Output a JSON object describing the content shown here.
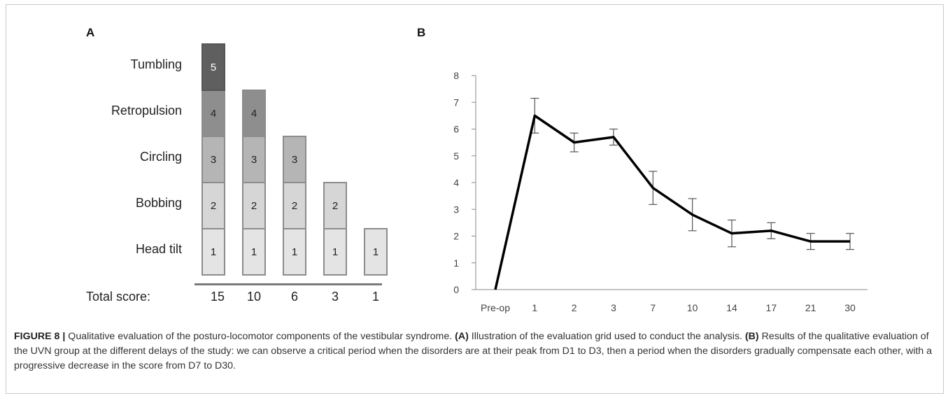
{
  "panel_a": {
    "letter": "A",
    "rows": [
      "Tumbling",
      "Retropulsion",
      "Circling",
      "Bobbing",
      "Head tilt"
    ],
    "total_label": "Total score:",
    "columns": [
      {
        "total": "15",
        "levels": [
          1,
          2,
          3,
          4,
          5
        ]
      },
      {
        "total": "10",
        "levels": [
          1,
          2,
          3,
          4
        ]
      },
      {
        "total": "6",
        "levels": [
          1,
          2,
          3
        ]
      },
      {
        "total": "3",
        "levels": [
          1,
          2
        ]
      },
      {
        "total": "1",
        "levels": [
          1
        ]
      }
    ],
    "level_colors": {
      "1": "#e4e4e4",
      "2": "#d6d6d6",
      "3": "#b5b5b5",
      "4": "#8e8e8e",
      "5": "#5f5f5f"
    }
  },
  "panel_b": {
    "letter": "B"
  },
  "chart_data": {
    "type": "line",
    "categories": [
      "Pre-op",
      "1",
      "2",
      "3",
      "7",
      "10",
      "14",
      "17",
      "21",
      "30"
    ],
    "series": [
      {
        "values": [
          0,
          6.5,
          5.5,
          5.7,
          3.8,
          2.8,
          2.1,
          2.2,
          1.8,
          1.8
        ],
        "error": [
          0,
          0.65,
          0.35,
          0.3,
          0.62,
          0.6,
          0.5,
          0.3,
          0.3,
          0.3
        ]
      }
    ],
    "ylim": [
      0,
      8
    ],
    "yticks": [
      0,
      1,
      2,
      3,
      4,
      5,
      6,
      7,
      8
    ],
    "grid": false,
    "line_color": "#000000"
  },
  "caption": {
    "fig": "FIGURE 8 |",
    "intro": " Qualitative evaluation of the posturo-locomotor components of the vestibular syndrome. ",
    "a_tag": "(A)",
    "a_text": " Illustration of the evaluation grid used to conduct the analysis. ",
    "b_tag": "(B)",
    "b_text": " Results of the qualitative evaluation of the UVN group at the different delays of the study: we can observe a critical period when the disorders are at their peak from D1 to D3, then a period when the disorders gradually compensate each other, with a progressive decrease in the score from D7 to D30."
  }
}
